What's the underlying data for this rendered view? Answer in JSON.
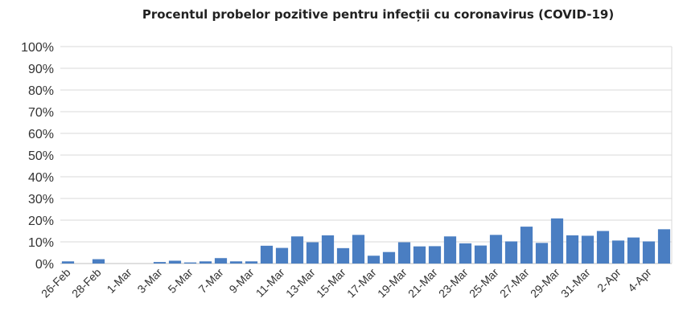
{
  "chart_data": {
    "type": "bar",
    "title": "Procentul probelor pozitive pentru infecții cu coronavirus  (COVID-19)",
    "xlabel": "",
    "ylabel": "",
    "ylim": [
      0,
      100
    ],
    "yticks": [
      "0%",
      "10%",
      "20%",
      "30%",
      "40%",
      "50%",
      "60%",
      "70%",
      "80%",
      "90%",
      "100%"
    ],
    "grid": true,
    "bar_color": "#4A7EC2",
    "categories": [
      "26-Feb",
      "27-Feb",
      "28-Feb",
      "29-Feb",
      "1-Mar",
      "2-Mar",
      "3-Mar",
      "4-Mar",
      "5-Mar",
      "6-Mar",
      "7-Mar",
      "8-Mar",
      "9-Mar",
      "10-Mar",
      "11-Mar",
      "12-Mar",
      "13-Mar",
      "14-Mar",
      "15-Mar",
      "16-Mar",
      "17-Mar",
      "18-Mar",
      "19-Mar",
      "20-Mar",
      "21-Mar",
      "22-Mar",
      "23-Mar",
      "24-Mar",
      "25-Mar",
      "26-Mar",
      "27-Mar",
      "28-Mar",
      "29-Mar",
      "30-Mar",
      "31-Mar",
      "1-Apr",
      "2-Apr",
      "3-Apr",
      "4-Apr",
      "5-Apr"
    ],
    "shown_tick_labels": [
      "26-Feb",
      "28-Feb",
      "1-Mar",
      "3-Mar",
      "5-Mar",
      "7-Mar",
      "9-Mar",
      "11-Mar",
      "13-Mar",
      "15-Mar",
      "17-Mar",
      "19-Mar",
      "21-Mar",
      "23-Mar",
      "25-Mar",
      "27-Mar",
      "29-Mar",
      "31-Mar",
      "2-Apr",
      "4-Apr"
    ],
    "values": [
      1.0,
      0,
      2.0,
      0,
      0,
      0,
      0.7,
      1.3,
      0.5,
      1.0,
      2.5,
      1.0,
      1.0,
      8.2,
      7.2,
      12.5,
      9.8,
      13.0,
      7.1,
      13.2,
      3.6,
      5.3,
      9.8,
      7.9,
      8.0,
      12.5,
      9.3,
      8.3,
      13.2,
      10.2,
      17.0,
      9.5,
      20.8,
      13.0,
      12.8,
      15.0,
      10.6,
      12.0,
      10.2,
      15.8
    ]
  }
}
